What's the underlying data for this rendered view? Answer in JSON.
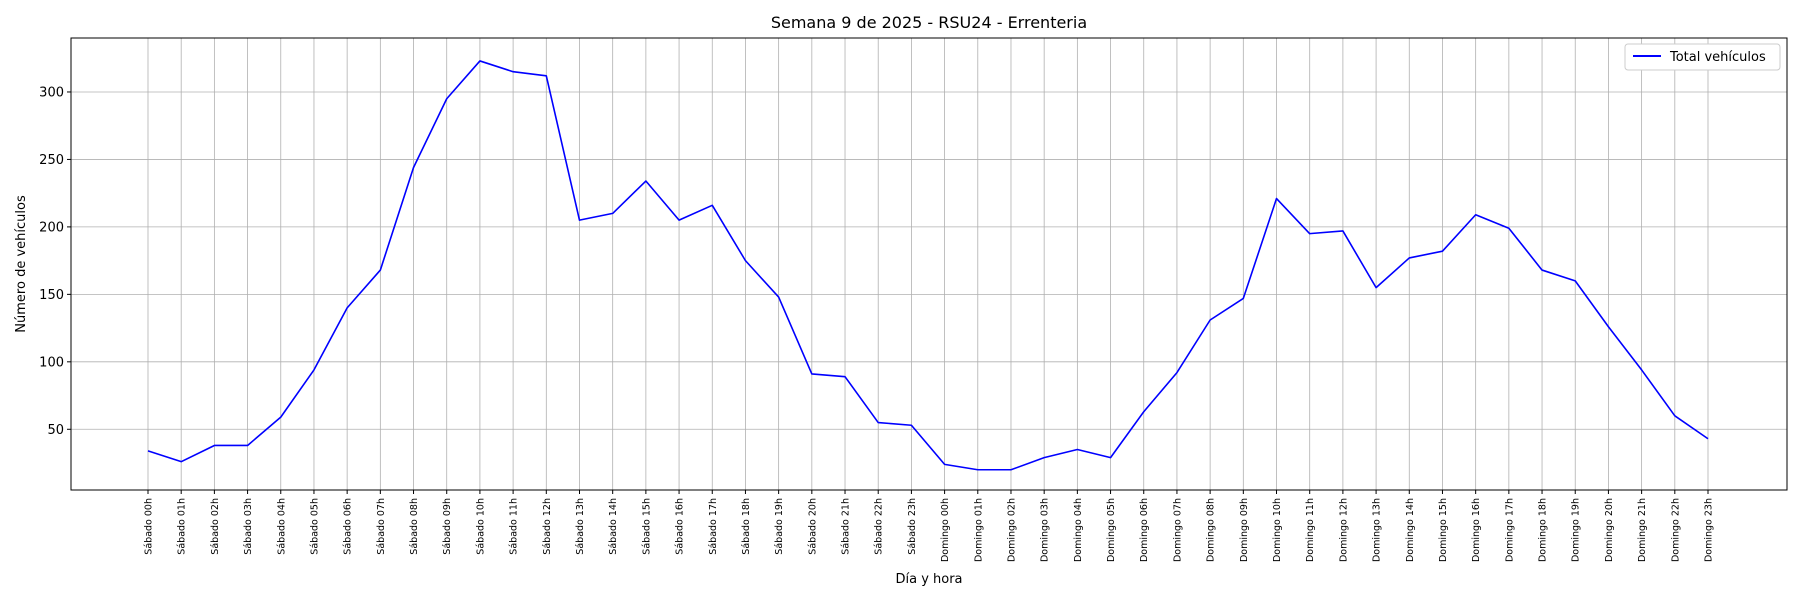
{
  "chart_data": {
    "type": "line",
    "title": "Semana 9 de 2025 - RSU24 - Errenteria",
    "xlabel": "Día y hora",
    "ylabel": "Número de vehículos",
    "ylim": [
      5,
      340
    ],
    "yticks": [
      50,
      100,
      150,
      200,
      250,
      300
    ],
    "grid": true,
    "legend_position": "top-right",
    "categories": [
      "Sábado 00h",
      "Sábado 01h",
      "Sábado 02h",
      "Sábado 03h",
      "Sábado 04h",
      "Sábado 05h",
      "Sábado 06h",
      "Sábado 07h",
      "Sábado 08h",
      "Sábado 09h",
      "Sábado 10h",
      "Sábado 11h",
      "Sábado 12h",
      "Sábado 13h",
      "Sábado 14h",
      "Sábado 15h",
      "Sábado 16h",
      "Sábado 17h",
      "Sábado 18h",
      "Sábado 19h",
      "Sábado 20h",
      "Sábado 21h",
      "Sábado 22h",
      "Sábado 23h",
      "Domingo 00h",
      "Domingo 01h",
      "Domingo 02h",
      "Domingo 03h",
      "Domingo 04h",
      "Domingo 05h",
      "Domingo 06h",
      "Domingo 07h",
      "Domingo 08h",
      "Domingo 09h",
      "Domingo 10h",
      "Domingo 11h",
      "Domingo 12h",
      "Domingo 13h",
      "Domingo 14h",
      "Domingo 15h",
      "Domingo 16h",
      "Domingo 17h",
      "Domingo 18h",
      "Domingo 19h",
      "Domingo 20h",
      "Domingo 21h",
      "Domingo 22h",
      "Domingo 23h"
    ],
    "series": [
      {
        "name": "Total vehículos",
        "color": "#0000ff",
        "values": [
          34,
          26,
          38,
          38,
          59,
          94,
          140,
          168,
          244,
          295,
          323,
          315,
          312,
          205,
          210,
          234,
          205,
          216,
          175,
          148,
          91,
          89,
          55,
          53,
          24,
          20,
          20,
          29,
          35,
          29,
          63,
          92,
          131,
          147,
          221,
          195,
          197,
          155,
          177,
          182,
          209,
          199,
          168,
          160,
          126,
          94,
          60,
          43
        ]
      }
    ]
  }
}
